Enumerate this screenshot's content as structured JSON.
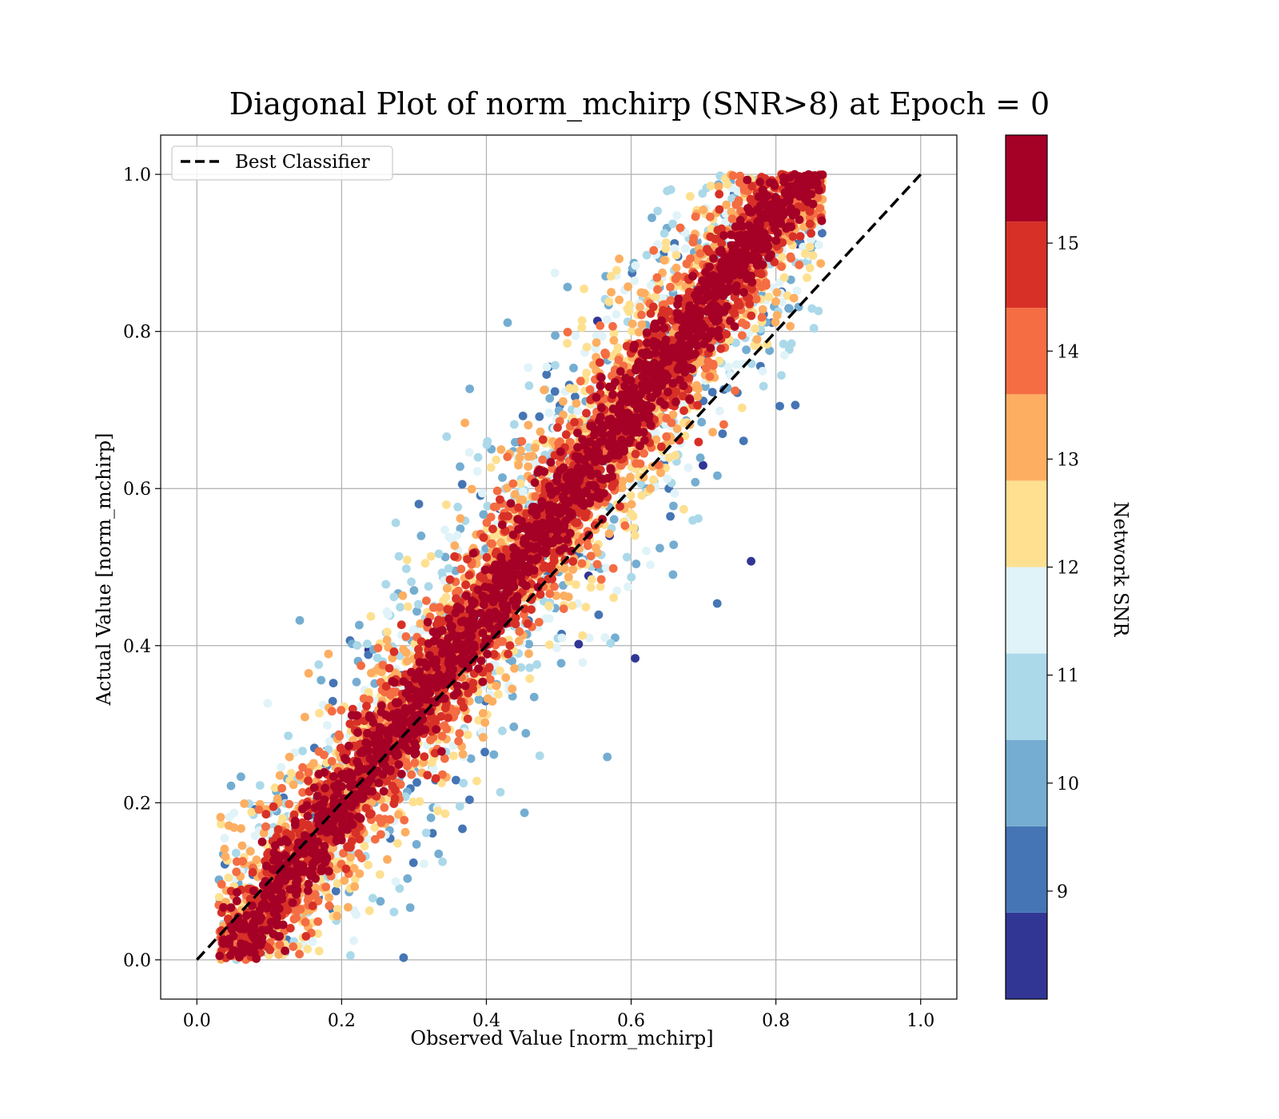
{
  "chart_data": {
    "type": "scatter",
    "title": "Diagonal Plot of norm_mchirp (SNR>8) at Epoch = 0",
    "xlabel": "Observed Value [norm_mchirp]",
    "ylabel": "Actual Value [norm_mchirp]",
    "xlim": [
      -0.05,
      1.05
    ],
    "ylim": [
      -0.05,
      1.05
    ],
    "xticks": [
      "0.0",
      "0.2",
      "0.4",
      "0.6",
      "0.8",
      "1.0"
    ],
    "yticks": [
      "0.0",
      "0.2",
      "0.4",
      "0.6",
      "0.8",
      "1.0"
    ],
    "grid": true,
    "legend": {
      "position": "upper-left",
      "entries": [
        {
          "label": "Best Classifier",
          "style": "dashed",
          "color": "#000000"
        }
      ]
    },
    "diagonal": {
      "name": "Best Classifier",
      "x": [
        0,
        1
      ],
      "y": [
        0,
        1
      ]
    },
    "series": {
      "name": "",
      "x_range": [
        0.03,
        0.86
      ],
      "y_range": [
        0.0,
        1.0
      ],
      "color_variable": "Network SNR",
      "note_density": "dense band along the diagonal, high-SNR points concentrated near y = x"
    },
    "colorbar": {
      "label": "Network SNR",
      "range": [
        8,
        16
      ],
      "tick_values": [
        9,
        10,
        11,
        12,
        13,
        14,
        15
      ],
      "tick_labels": [
        "9",
        "10",
        "11",
        "12",
        "13",
        "14",
        "15"
      ],
      "color_bins": [
        {
          "from": 8,
          "to": 8.8,
          "color": "#313695"
        },
        {
          "from": 8.8,
          "to": 9.6,
          "color": "#4575b4"
        },
        {
          "from": 9.6,
          "to": 10.4,
          "color": "#74add1"
        },
        {
          "from": 10.4,
          "to": 11.2,
          "color": "#abd9e9"
        },
        {
          "from": 11.2,
          "to": 12.0,
          "color": "#e0f3f8"
        },
        {
          "from": 12.0,
          "to": 12.8,
          "color": "#fee090"
        },
        {
          "from": 12.8,
          "to": 13.6,
          "color": "#fdae61"
        },
        {
          "from": 13.6,
          "to": 14.4,
          "color": "#f46d43"
        },
        {
          "from": 14.4,
          "to": 15.2,
          "color": "#d73027"
        },
        {
          "from": 15.2,
          "to": 16.0,
          "color": "#a50026"
        }
      ]
    }
  }
}
